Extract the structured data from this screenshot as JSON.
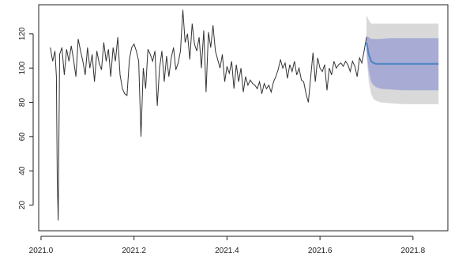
{
  "chart_data": {
    "type": "line",
    "title": "",
    "xlabel": "",
    "ylabel": "",
    "xlim": [
      2020.995,
      2021.875
    ],
    "ylim": [
      5,
      137
    ],
    "x_ticks": [
      2021.0,
      2021.2,
      2021.4,
      2021.6,
      2021.8
    ],
    "x_tick_labels": [
      "2021.0",
      "2021.2",
      "2021.4",
      "2021.6",
      "2021.8"
    ],
    "y_ticks": [
      20,
      40,
      60,
      80,
      100,
      120
    ],
    "y_tick_labels": [
      "20",
      "40",
      "60",
      "80",
      "100",
      "120"
    ],
    "grid": false,
    "legend": "none",
    "colors": {
      "history": "#333333",
      "forecast_mean": "#4f86c6",
      "band_80": "#a8acd4",
      "band_95": "#d9d9d9"
    },
    "series": [
      {
        "x": [
          2021.02,
          2021.025,
          2021.03,
          2021.033,
          2021.035,
          2021.037,
          2021.04,
          2021.045,
          2021.05,
          2021.055,
          2021.06,
          2021.065,
          2021.07,
          2021.075,
          2021.08,
          2021.085,
          2021.09,
          2021.095,
          2021.1,
          2021.105,
          2021.11,
          2021.115,
          2021.12,
          2021.125,
          2021.13,
          2021.135,
          2021.14,
          2021.145,
          2021.15,
          2021.155,
          2021.16,
          2021.165,
          2021.17,
          2021.175,
          2021.18,
          2021.185,
          2021.19,
          2021.195,
          2021.2,
          2021.205,
          2021.21,
          2021.215,
          2021.22,
          2021.225,
          2021.23,
          2021.235,
          2021.24,
          2021.245,
          2021.25,
          2021.255,
          2021.26,
          2021.265,
          2021.27,
          2021.275,
          2021.28,
          2021.285,
          2021.29,
          2021.295,
          2021.3,
          2021.305,
          2021.31,
          2021.315,
          2021.32,
          2021.325,
          2021.33,
          2021.335,
          2021.34,
          2021.345,
          2021.35,
          2021.355,
          2021.36,
          2021.365,
          2021.37,
          2021.375,
          2021.38,
          2021.385,
          2021.39,
          2021.395,
          2021.4,
          2021.405,
          2021.41,
          2021.415,
          2021.42,
          2021.425,
          2021.43,
          2021.435,
          2021.44,
          2021.445,
          2021.45,
          2021.455,
          2021.46,
          2021.465,
          2021.47,
          2021.475,
          2021.48,
          2021.485,
          2021.49,
          2021.495,
          2021.5,
          2021.505,
          2021.51,
          2021.515,
          2021.52,
          2021.525,
          2021.53,
          2021.535,
          2021.54,
          2021.545,
          2021.55,
          2021.555,
          2021.56,
          2021.565,
          2021.57,
          2021.575,
          2021.58,
          2021.585,
          2021.59,
          2021.595,
          2021.6,
          2021.605,
          2021.61,
          2021.615,
          2021.62,
          2021.625,
          2021.63,
          2021.635,
          2021.64,
          2021.645,
          2021.65,
          2021.655,
          2021.66,
          2021.665,
          2021.67,
          2021.675,
          2021.68,
          2021.685,
          2021.69,
          2021.695,
          2021.7
        ],
        "y": [
          112,
          104,
          110,
          95,
          35,
          11,
          108,
          112,
          96,
          111,
          104,
          113,
          105,
          95,
          117,
          110,
          104,
          96,
          112,
          100,
          108,
          92,
          110,
          103,
          99,
          115,
          104,
          111,
          95,
          112,
          104,
          118,
          96,
          88,
          85,
          84,
          105,
          112,
          114,
          110,
          104,
          60,
          100,
          88,
          111,
          108,
          104,
          110,
          78,
          100,
          110,
          92,
          107,
          95,
          106,
          112,
          99,
          103,
          110,
          134,
          115,
          120,
          105,
          126,
          114,
          110,
          118,
          100,
          122,
          86,
          121,
          112,
          125,
          110,
          105,
          100,
          108,
          92,
          101,
          97,
          104,
          88,
          102,
          92,
          100,
          86,
          95,
          90,
          93,
          91,
          90,
          88,
          92,
          85,
          91,
          88,
          90,
          86,
          92,
          95,
          99,
          105,
          100,
          103,
          94,
          102,
          98,
          104,
          96,
          100,
          93,
          92,
          85,
          80,
          95,
          109,
          92,
          106,
          100,
          98,
          102,
          87,
          100,
          96,
          104,
          100,
          102,
          103,
          101,
          104,
          102,
          98,
          104,
          101,
          95,
          106,
          103,
          110,
          118
        ],
        "name": ""
      }
    ],
    "forecast": {
      "x": [
        2021.7,
        2021.705,
        2021.71,
        2021.715,
        2021.72,
        2021.73,
        2021.75,
        2021.78,
        2021.81,
        2021.84,
        2021.855
      ],
      "mean": [
        115,
        108,
        104,
        103,
        102.5,
        102.5,
        102.5,
        102.5,
        102.5,
        102.5,
        102.5
      ],
      "lo80": [
        110,
        98,
        92,
        90,
        89,
        88,
        87.5,
        87,
        87,
        87,
        87
      ],
      "hi80": [
        119,
        118,
        117,
        117,
        117,
        117,
        117.5,
        117.5,
        117.5,
        117.5,
        117.5
      ],
      "lo95": [
        107,
        92,
        85,
        82,
        81,
        80,
        79.5,
        79,
        79,
        79,
        79
      ],
      "hi95": [
        131,
        128,
        126,
        126,
        126,
        126,
        126,
        126,
        126,
        126,
        126
      ]
    }
  }
}
